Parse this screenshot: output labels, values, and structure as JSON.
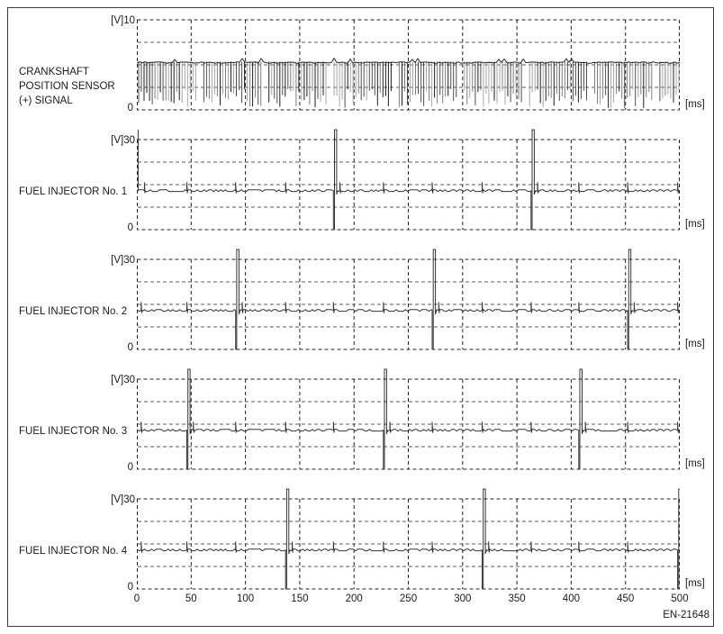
{
  "figure": {
    "code": "EN-21648"
  },
  "axis": {
    "x_ticks": [
      "0",
      "50",
      "100",
      "150",
      "200",
      "250",
      "300",
      "350",
      "400",
      "450",
      "500"
    ],
    "x_unit": "[ms]"
  },
  "chart_data": {
    "type": "line",
    "x_range_ms": [
      0,
      500
    ],
    "x_axis_ticks_ms": [
      0,
      50,
      100,
      150,
      200,
      250,
      300,
      350,
      400,
      450,
      500
    ],
    "panels": [
      {
        "id": "crankshaft-position-sensor",
        "label": "CRANKSHAFT\nPOSITION SENSOR\n(+) SIGNAL",
        "y_scale_label": "[V]10",
        "y_zero_label": "0",
        "x_unit_label": "[ms]",
        "y_max_v": 10,
        "signal": "toothed",
        "baseline_v": 5.2,
        "tooth_period_ms": 2.5,
        "tooth_bottom_v_min": 0.2,
        "tooth_bottom_v_max": 2.3,
        "missing_tooth_every": 22
      },
      {
        "id": "fuel-injector-1",
        "label": "FUEL INJECTOR No. 1",
        "y_scale_label": "[V]30",
        "y_zero_label": "0",
        "x_unit_label": "[ms]",
        "y_max_v": 30,
        "signal": "injector",
        "baseline_v": 13,
        "events_ms": [
          0.5,
          181,
          363
        ],
        "first_event_partial": true,
        "pulse_width_ms": 2,
        "minor_ticks_ms": [
          7,
          46,
          91,
          137,
          187,
          227,
          272,
          318,
          369,
          407,
          452,
          498
        ]
      },
      {
        "id": "fuel-injector-2",
        "label": "FUEL INJECTOR No. 2",
        "y_scale_label": "[V]30",
        "y_zero_label": "0",
        "x_unit_label": "[ms]",
        "y_max_v": 30,
        "signal": "injector",
        "baseline_v": 13,
        "events_ms": [
          91,
          272,
          452
        ],
        "first_event_partial": false,
        "pulse_width_ms": 2,
        "minor_ticks_ms": [
          4,
          46,
          97,
          137,
          181,
          227,
          278,
          318,
          363,
          407,
          458,
          498
        ]
      },
      {
        "id": "fuel-injector-3",
        "label": "FUEL INJECTOR No. 3",
        "y_scale_label": "[V]30",
        "y_zero_label": "0",
        "x_unit_label": "[ms]",
        "y_max_v": 30,
        "signal": "injector",
        "baseline_v": 13,
        "events_ms": [
          46,
          227,
          407
        ],
        "first_event_partial": false,
        "pulse_width_ms": 2,
        "minor_ticks_ms": [
          4,
          52,
          91,
          137,
          181,
          233,
          272,
          318,
          363,
          413,
          452,
          498
        ]
      },
      {
        "id": "fuel-injector-4",
        "label": "FUEL INJECTOR No. 4",
        "y_scale_label": "[V]30",
        "y_zero_label": "0",
        "x_unit_label": "[ms]",
        "y_max_v": 30,
        "signal": "injector",
        "baseline_v": 13,
        "events_ms": [
          137,
          318,
          498
        ],
        "first_event_partial": false,
        "pulse_width_ms": 2,
        "minor_ticks_ms": [
          4,
          46,
          91,
          143,
          181,
          227,
          272,
          324,
          363,
          407,
          452
        ]
      }
    ]
  }
}
